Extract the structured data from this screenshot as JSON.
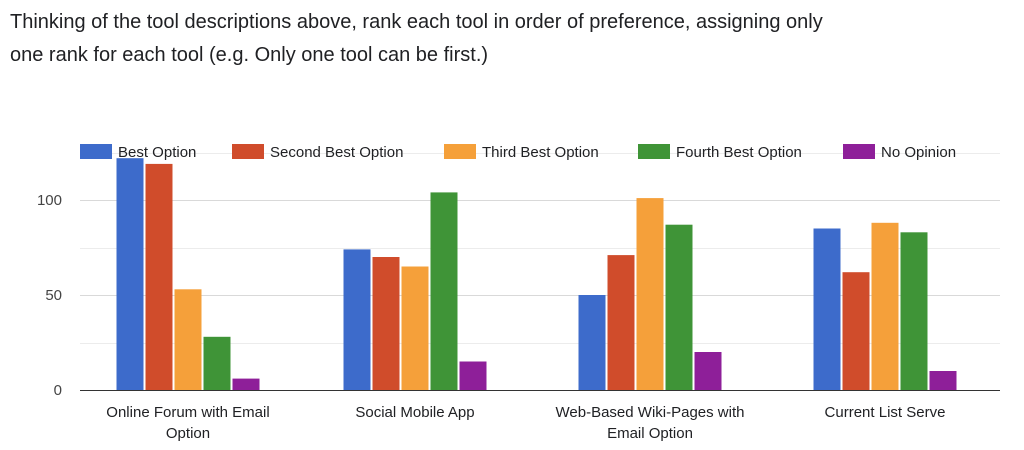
{
  "question": {
    "line1": "Thinking of the tool descriptions above, rank each tool in order of preference, assigning only",
    "line2": "one rank for each tool (e.g. Only one tool can be first.)"
  },
  "chart_data": {
    "type": "bar",
    "categories": [
      [
        "Online Forum with Email",
        "Option"
      ],
      [
        "Social Mobile App"
      ],
      [
        "Web-Based Wiki-Pages with",
        "Email Option"
      ],
      [
        "Current List Serve"
      ]
    ],
    "series": [
      {
        "name": "Best Option",
        "color": "#3d6bcb",
        "values": [
          122,
          74,
          50,
          85
        ]
      },
      {
        "name": "Second Best Option",
        "color": "#d04c2b",
        "values": [
          119,
          70,
          71,
          62
        ]
      },
      {
        "name": "Third Best Option",
        "color": "#f5a03a",
        "values": [
          53,
          65,
          101,
          88
        ]
      },
      {
        "name": "Fourth Best Option",
        "color": "#3f9437",
        "values": [
          28,
          104,
          87,
          83
        ]
      },
      {
        "name": "No Opinion",
        "color": "#8e1f99",
        "values": [
          6,
          15,
          20,
          10
        ]
      }
    ],
    "yticks": [
      0,
      50,
      100
    ],
    "ylim": [
      0,
      125
    ],
    "grid": true,
    "legend_position": "top",
    "xlabel": "",
    "ylabel": ""
  }
}
